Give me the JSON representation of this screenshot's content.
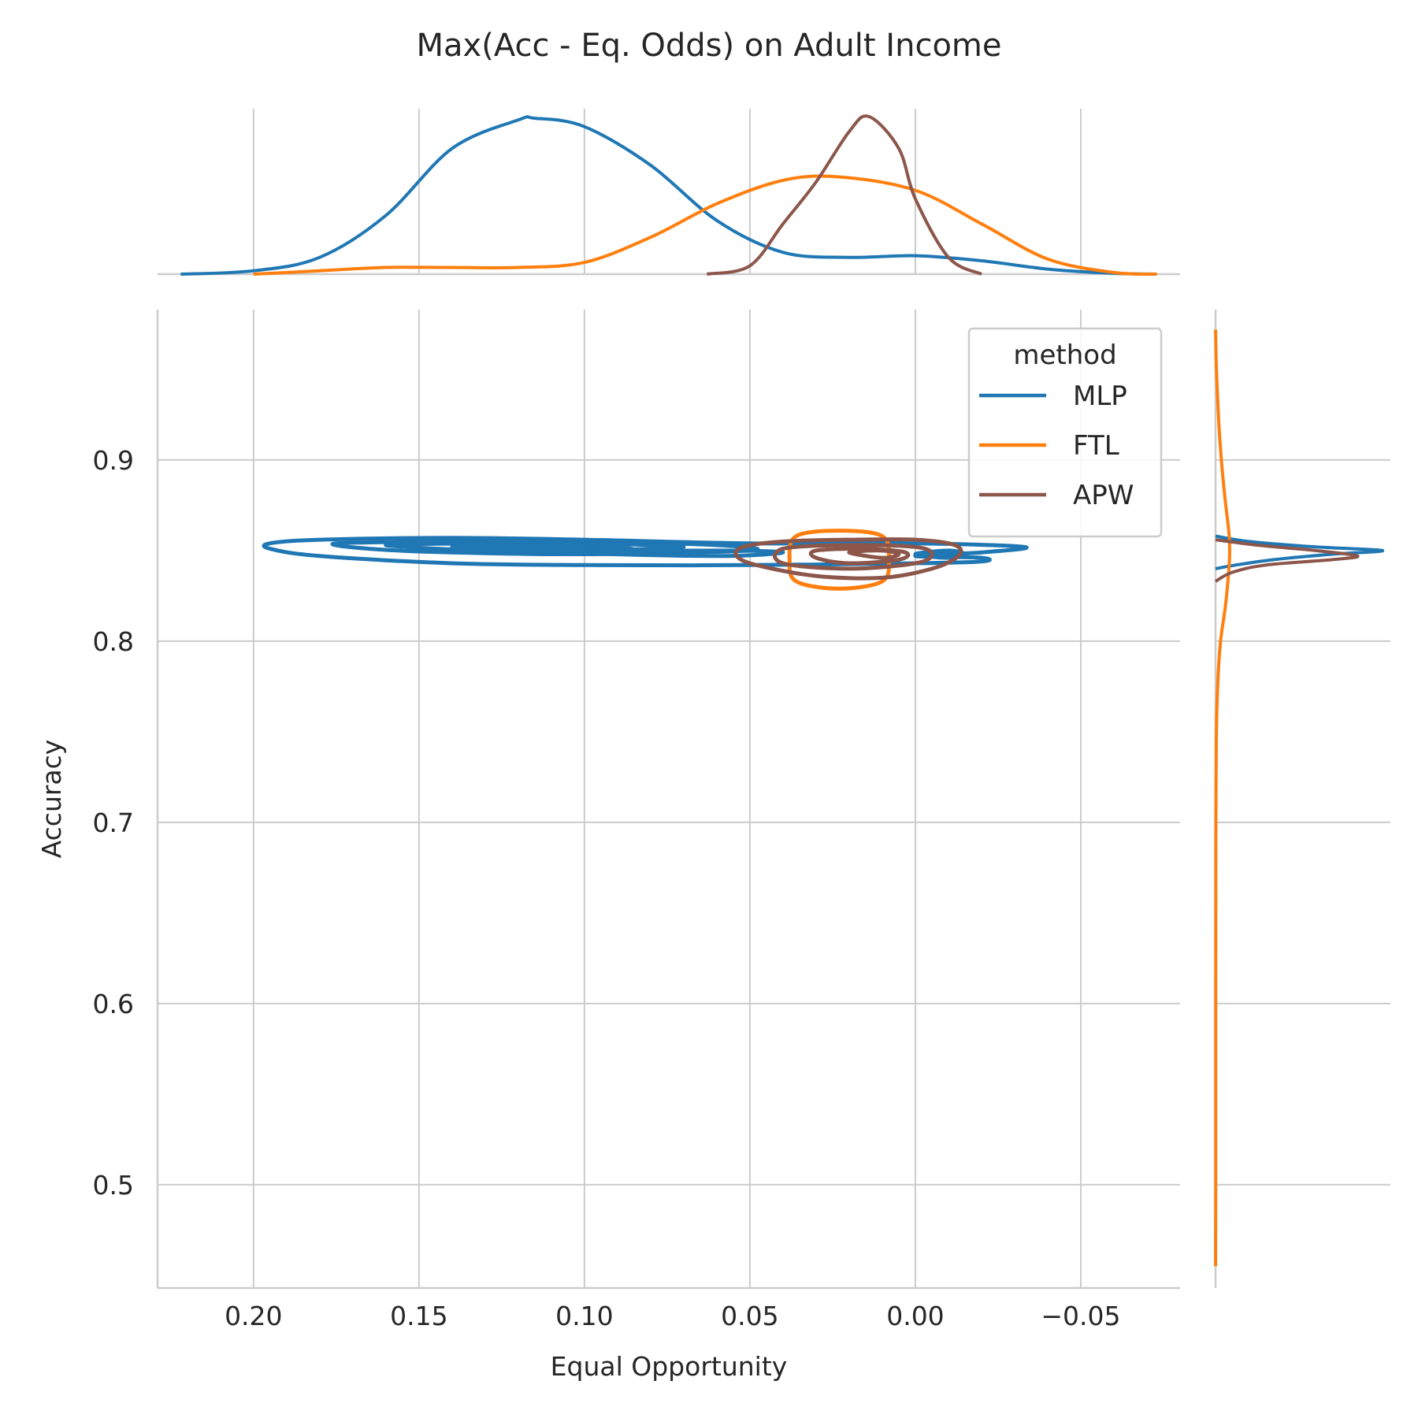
{
  "chart_data": {
    "type": "joint_kde",
    "title": "Max(Acc - Eq. Odds) on Adult Income",
    "xlabel": "Equal Opportunity",
    "ylabel": "Accuracy",
    "x_inverted": true,
    "xlim": [
      0.229,
      -0.08
    ],
    "ylim": [
      0.443,
      0.983
    ],
    "x_ticks": [
      0.2,
      0.15,
      0.1,
      0.05,
      0.0,
      -0.05
    ],
    "x_tick_labels": [
      "0.20",
      "0.15",
      "0.10",
      "0.05",
      "0.00",
      "−0.05"
    ],
    "y_ticks": [
      0.5,
      0.6,
      0.7,
      0.8,
      0.9
    ],
    "y_tick_labels": [
      "0.5",
      "0.6",
      "0.7",
      "0.8",
      "0.9"
    ],
    "grid": true,
    "legend": {
      "title": "method",
      "position": "upper-right"
    },
    "series": [
      {
        "name": "MLP",
        "color": "#1f77b4",
        "marginal_x": {
          "x": [
            0.222,
            0.2,
            0.18,
            0.16,
            0.14,
            0.12,
            0.115,
            0.1,
            0.08,
            0.06,
            0.04,
            0.02,
            0.0,
            -0.02,
            -0.04,
            -0.06,
            -0.073
          ],
          "density": [
            0.0,
            0.02,
            0.1,
            0.35,
            0.75,
            0.92,
            0.93,
            0.88,
            0.65,
            0.32,
            0.13,
            0.1,
            0.11,
            0.08,
            0.03,
            0.005,
            0.0
          ]
        },
        "marginal_y": {
          "y": [
            0.858,
            0.855,
            0.852,
            0.85,
            0.848,
            0.845,
            0.842,
            0.84
          ],
          "density": [
            0.0,
            0.2,
            0.6,
            1.0,
            0.7,
            0.35,
            0.12,
            0.0
          ]
        },
        "contours": [
          [
            [
              0.195,
              0.854
            ],
            [
              0.18,
              0.856
            ],
            [
              0.14,
              0.857
            ],
            [
              0.1,
              0.856
            ],
            [
              0.05,
              0.854
            ],
            [
              0.0,
              0.854
            ],
            [
              -0.033,
              0.852
            ],
            [
              -0.02,
              0.849
            ],
            [
              0.0,
              0.847
            ],
            [
              -0.02,
              0.846
            ],
            [
              -0.02,
              0.844
            ],
            [
              0.0,
              0.843
            ],
            [
              0.05,
              0.842
            ],
            [
              0.1,
              0.842
            ],
            [
              0.14,
              0.843
            ],
            [
              0.18,
              0.847
            ],
            [
              0.195,
              0.851
            ],
            [
              0.195,
              0.854
            ]
          ],
          [
            [
              0.175,
              0.854
            ],
            [
              0.14,
              0.855
            ],
            [
              0.1,
              0.855
            ],
            [
              0.06,
              0.853
            ],
            [
              0.05,
              0.85
            ],
            [
              0.1,
              0.848
            ],
            [
              0.14,
              0.849
            ],
            [
              0.165,
              0.851
            ],
            [
              0.175,
              0.854
            ]
          ],
          [
            [
              0.16,
              0.853
            ],
            [
              0.13,
              0.854
            ],
            [
              0.1,
              0.854
            ],
            [
              0.07,
              0.852
            ],
            [
              0.1,
              0.85
            ],
            [
              0.13,
              0.85
            ],
            [
              0.16,
              0.853
            ]
          ],
          [
            [
              0.14,
              0.852
            ],
            [
              0.11,
              0.853
            ],
            [
              0.09,
              0.852
            ],
            [
              0.11,
              0.85
            ],
            [
              0.14,
              0.852
            ]
          ],
          [
            [
              0.125,
              0.851
            ],
            [
              0.1,
              0.852
            ],
            [
              0.085,
              0.851
            ],
            [
              0.1,
              0.849
            ],
            [
              0.125,
              0.851
            ]
          ],
          [
            [
              0.105,
              0.849
            ],
            [
              0.06,
              0.85
            ],
            [
              0.04,
              0.849
            ],
            [
              0.06,
              0.847
            ],
            [
              0.105,
              0.849
            ]
          ],
          [
            [
              0.0,
              0.848
            ],
            [
              -0.01,
              0.85
            ],
            [
              -0.015,
              0.848
            ],
            [
              -0.01,
              0.846
            ],
            [
              0.0,
              0.848
            ]
          ]
        ]
      },
      {
        "name": "FTL",
        "color": "#ff7f0e",
        "marginal_x": {
          "x": [
            0.2,
            0.18,
            0.16,
            0.14,
            0.12,
            0.1,
            0.08,
            0.06,
            0.04,
            0.023,
            0.0,
            -0.02,
            -0.04,
            -0.06,
            -0.073
          ],
          "density": [
            0.0,
            0.02,
            0.04,
            0.04,
            0.04,
            0.07,
            0.22,
            0.42,
            0.56,
            0.58,
            0.5,
            0.3,
            0.09,
            0.01,
            0.0
          ]
        },
        "marginal_y": {
          "y": [
            0.972,
            0.95,
            0.92,
            0.9,
            0.88,
            0.86,
            0.85,
            0.84,
            0.82,
            0.8,
            0.78,
            0.75,
            0.7,
            0.6,
            0.5,
            0.455
          ],
          "density": [
            0.0,
            0.005,
            0.02,
            0.035,
            0.055,
            0.08,
            0.085,
            0.08,
            0.06,
            0.03,
            0.015,
            0.005,
            0.002,
            0.001,
            0.001,
            0.0
          ]
        },
        "contours": [
          [
            [
              0.023,
              0.861
            ],
            [
              0.01,
              0.858
            ],
            [
              0.008,
              0.845
            ],
            [
              0.01,
              0.833
            ],
            [
              0.023,
              0.829
            ],
            [
              0.036,
              0.833
            ],
            [
              0.038,
              0.845
            ],
            [
              0.036,
              0.858
            ],
            [
              0.023,
              0.861
            ]
          ]
        ]
      },
      {
        "name": "APW",
        "color": "#8c564b",
        "marginal_x": {
          "x": [
            0.063,
            0.05,
            0.04,
            0.03,
            0.02,
            0.014,
            0.005,
            0.0,
            -0.01,
            -0.02
          ],
          "density": [
            0.0,
            0.05,
            0.3,
            0.55,
            0.85,
            0.94,
            0.75,
            0.45,
            0.1,
            0.0
          ]
        },
        "marginal_y": {
          "y": [
            0.856,
            0.853,
            0.85,
            0.847,
            0.845,
            0.842,
            0.838,
            0.833
          ],
          "density": [
            0.0,
            0.25,
            0.6,
            0.85,
            0.7,
            0.3,
            0.1,
            0.0
          ]
        },
        "contours": [
          [
            [
              0.052,
              0.852
            ],
            [
              0.04,
              0.855
            ],
            [
              0.02,
              0.856
            ],
            [
              0.0,
              0.856
            ],
            [
              -0.012,
              0.853
            ],
            [
              -0.013,
              0.847
            ],
            [
              -0.005,
              0.84
            ],
            [
              0.01,
              0.835
            ],
            [
              0.03,
              0.836
            ],
            [
              0.048,
              0.842
            ],
            [
              0.054,
              0.847
            ],
            [
              0.052,
              0.852
            ]
          ],
          [
            [
              0.04,
              0.851
            ],
            [
              0.02,
              0.853
            ],
            [
              0.0,
              0.852
            ],
            [
              -0.005,
              0.848
            ],
            [
              0.0,
              0.843
            ],
            [
              0.02,
              0.84
            ],
            [
              0.04,
              0.843
            ],
            [
              0.04,
              0.851
            ]
          ],
          [
            [
              0.03,
              0.85
            ],
            [
              0.015,
              0.851
            ],
            [
              0.003,
              0.849
            ],
            [
              0.005,
              0.845
            ],
            [
              0.02,
              0.843
            ],
            [
              0.03,
              0.846
            ],
            [
              0.03,
              0.85
            ]
          ],
          [
            [
              0.02,
              0.849
            ],
            [
              0.01,
              0.85
            ],
            [
              0.005,
              0.848
            ],
            [
              0.01,
              0.846
            ],
            [
              0.02,
              0.849
            ]
          ]
        ]
      }
    ]
  }
}
